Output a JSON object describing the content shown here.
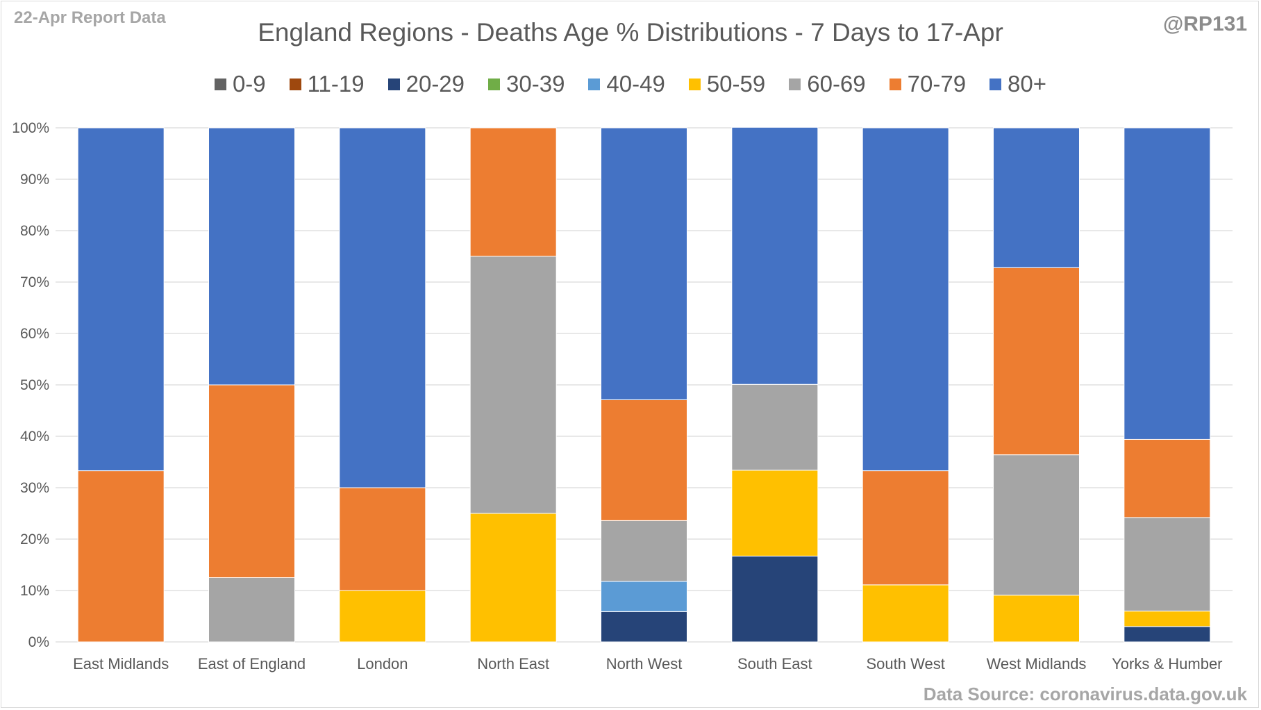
{
  "header": {
    "report_label": "22-Apr Report Data",
    "handle": "@RP131",
    "source": "Data Source: coronavirus.data.gov.uk"
  },
  "chart_data": {
    "type": "bar",
    "stacked": true,
    "title": "England Regions - Deaths Age % Distributions - 7 Days to 17-Apr",
    "xlabel": "",
    "ylabel": "",
    "ylim": [
      0,
      100
    ],
    "y_ticks": [
      "0%",
      "10%",
      "20%",
      "30%",
      "40%",
      "50%",
      "60%",
      "70%",
      "80%",
      "90%",
      "100%"
    ],
    "grid": true,
    "legend_position": "top",
    "categories": [
      "East Midlands",
      "East of England",
      "London",
      "North East",
      "North West",
      "South East",
      "South West",
      "West Midlands",
      "Yorks & Humber"
    ],
    "series": [
      {
        "name": "0-9",
        "color": "#636363",
        "values": [
          0,
          0,
          0,
          0,
          0,
          0,
          0,
          0,
          0
        ]
      },
      {
        "name": "11-19",
        "color": "#9e480e",
        "values": [
          0,
          0,
          0,
          0,
          0,
          0,
          0,
          0,
          0
        ]
      },
      {
        "name": "20-29",
        "color": "#264478",
        "values": [
          0,
          0,
          0,
          0,
          5.9,
          16.7,
          0,
          0,
          3.0
        ]
      },
      {
        "name": "30-39",
        "color": "#70ad47",
        "values": [
          0,
          0,
          0,
          0,
          0,
          0,
          0,
          0,
          0
        ]
      },
      {
        "name": "40-49",
        "color": "#5b9bd5",
        "values": [
          0,
          0,
          0,
          0,
          5.9,
          0,
          0,
          0,
          0
        ]
      },
      {
        "name": "50-59",
        "color": "#ffc000",
        "values": [
          0,
          0,
          10.0,
          25.0,
          0,
          16.7,
          11.1,
          9.1,
          3.0
        ]
      },
      {
        "name": "60-69",
        "color": "#a5a5a5",
        "values": [
          0,
          12.5,
          0,
          50.0,
          11.8,
          16.7,
          0,
          27.3,
          18.2
        ]
      },
      {
        "name": "70-79",
        "color": "#ed7d31",
        "values": [
          33.3,
          37.5,
          20.0,
          25.0,
          23.5,
          0,
          22.2,
          36.4,
          15.2
        ]
      },
      {
        "name": "80+",
        "color": "#4472c4",
        "values": [
          66.7,
          50.0,
          70.0,
          0,
          52.9,
          50.0,
          66.7,
          27.2,
          60.6
        ]
      }
    ]
  }
}
